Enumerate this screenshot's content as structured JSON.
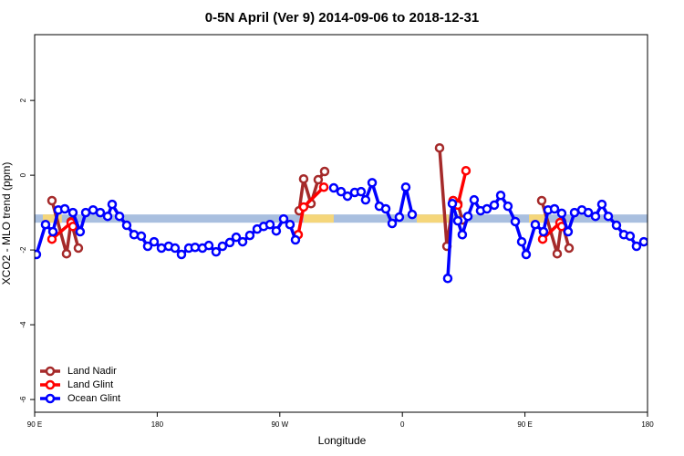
{
  "chart_data": {
    "type": "line",
    "title": "0-5N April (Ver 9)   2014-09-06 to 2018-12-31",
    "x_label": "Longitude",
    "y_label": "XCO2 - MLO trend (ppm)",
    "xlim": [
      -270,
      180
    ],
    "ylim": [
      -6.34,
      3.76
    ],
    "xticks": [
      {
        "value": -270,
        "label": "90 E"
      },
      {
        "value": -180,
        "label": "180"
      },
      {
        "value": -90,
        "label": "90 W"
      },
      0,
      {
        "value": 90,
        "label": "90 E"
      },
      180
    ],
    "yticks": [
      -6,
      -4,
      -2,
      0,
      2
    ],
    "legend": "bottom-left",
    "reference_band": {
      "range": [
        -1.27,
        -1.05
      ],
      "color": "#a9bfdf",
      "highlight_color": "#f5d67a",
      "highlights": [
        [
          -264,
          -250
        ],
        [
          -72.5,
          -50.4
        ],
        [
          10.6,
          34
        ],
        [
          93,
          105
        ]
      ]
    },
    "series": [
      {
        "name": "Land Nadir",
        "color": "#a52a2a",
        "x": [
          -257.3,
          -246.6,
          -243.2,
          -237.9,
          null,
          -75.8,
          -72.5,
          -67.1,
          -61.8,
          -57.1,
          null,
          27.3,
          32.7,
          37.3,
          40.7,
          44,
          null,
          102.3,
          113.7,
          117,
          122.4
        ],
        "values": [
          -0.68,
          -2.1,
          -1.24,
          -1.95,
          null,
          -0.95,
          -0.1,
          -0.76,
          -0.12,
          0.1,
          null,
          0.73,
          -1.9,
          -0.68,
          -0.76,
          -1.2,
          null,
          -0.68,
          -2.1,
          -1.24,
          -1.95
        ]
      },
      {
        "name": "Land Glint",
        "color": "#ff0000",
        "x": [
          -257.3,
          -243.2,
          -241.9,
          null,
          -76.5,
          -72.5,
          -57.7,
          null,
          37.3,
          40.7,
          46.7,
          null,
          103,
          115.7,
          117
        ],
        "values": [
          -1.71,
          -1.27,
          -1.37,
          null,
          -1.59,
          -0.85,
          -0.32,
          null,
          -0.68,
          -0.8,
          0.12,
          null,
          -1.71,
          -1.27,
          -1.37
        ]
      },
      {
        "name": "Ocean Glint",
        "color": "#0000ff",
        "x": [
          -268.7,
          -262,
          -256.6,
          -252.6,
          -247.9,
          -241.9,
          -236.6,
          -232.5,
          -227.1,
          -221.8,
          -216.4,
          -213.1,
          -207.7,
          -202.4,
          -197,
          -191.7,
          -187,
          -182.3,
          -176.9,
          -171.6,
          -166.9,
          -162.2,
          -156.8,
          -152.2,
          -146.8,
          -142.1,
          -136.8,
          -132.1,
          -126.7,
          -122,
          -117.3,
          -112,
          -106.6,
          -101.9,
          -97.2,
          -92.6,
          -87.2,
          -82.5,
          -78.5,
          null,
          -50.4,
          -45,
          -40.3,
          -35,
          -30.3,
          -27,
          -22.2,
          -16.9,
          -12.2,
          -7.5,
          -2.2,
          2.5,
          7.2,
          null,
          33.3,
          36.7,
          40.7,
          44,
          48.1,
          52.7,
          57.4,
          62.1,
          67.5,
          72.2,
          77.5,
          82.9,
          87.6,
          90.9,
          97.6,
          103.6,
          107,
          111.7,
          117,
          121.7,
          126.4,
          131.8,
          136.5,
          141.8,
          146.5,
          151.2,
          157.2,
          162.6,
          167.2,
          171.9,
          177.3
        ],
        "values": [
          -2.12,
          -1.32,
          -1.51,
          -0.93,
          -0.9,
          -1.0,
          -1.51,
          -1.0,
          -0.93,
          -1.0,
          -1.1,
          -0.78,
          -1.1,
          -1.34,
          -1.59,
          -1.63,
          -1.9,
          -1.78,
          -1.95,
          -1.9,
          -1.95,
          -2.12,
          -1.95,
          -1.93,
          -1.95,
          -1.88,
          -2.05,
          -1.9,
          -1.8,
          -1.66,
          -1.78,
          -1.61,
          -1.44,
          -1.37,
          -1.32,
          -1.49,
          -1.17,
          -1.32,
          -1.73,
          null,
          -0.34,
          -0.44,
          -0.56,
          -0.46,
          -0.44,
          -0.66,
          -0.2,
          -0.83,
          -0.9,
          -1.29,
          -1.12,
          -0.32,
          -1.05,
          null,
          -2.76,
          -0.76,
          -1.22,
          -1.59,
          -1.1,
          -0.66,
          -0.95,
          -0.9,
          -0.8,
          -0.54,
          -0.83,
          -1.24,
          -1.78,
          -2.12,
          -1.32,
          -1.51,
          -0.93,
          -0.9,
          -1.02,
          -1.51,
          -1.0,
          -0.93,
          -1.0,
          -1.1,
          -0.78,
          -1.1,
          -1.34,
          -1.59,
          -1.63,
          -1.9,
          -1.78
        ]
      }
    ]
  }
}
